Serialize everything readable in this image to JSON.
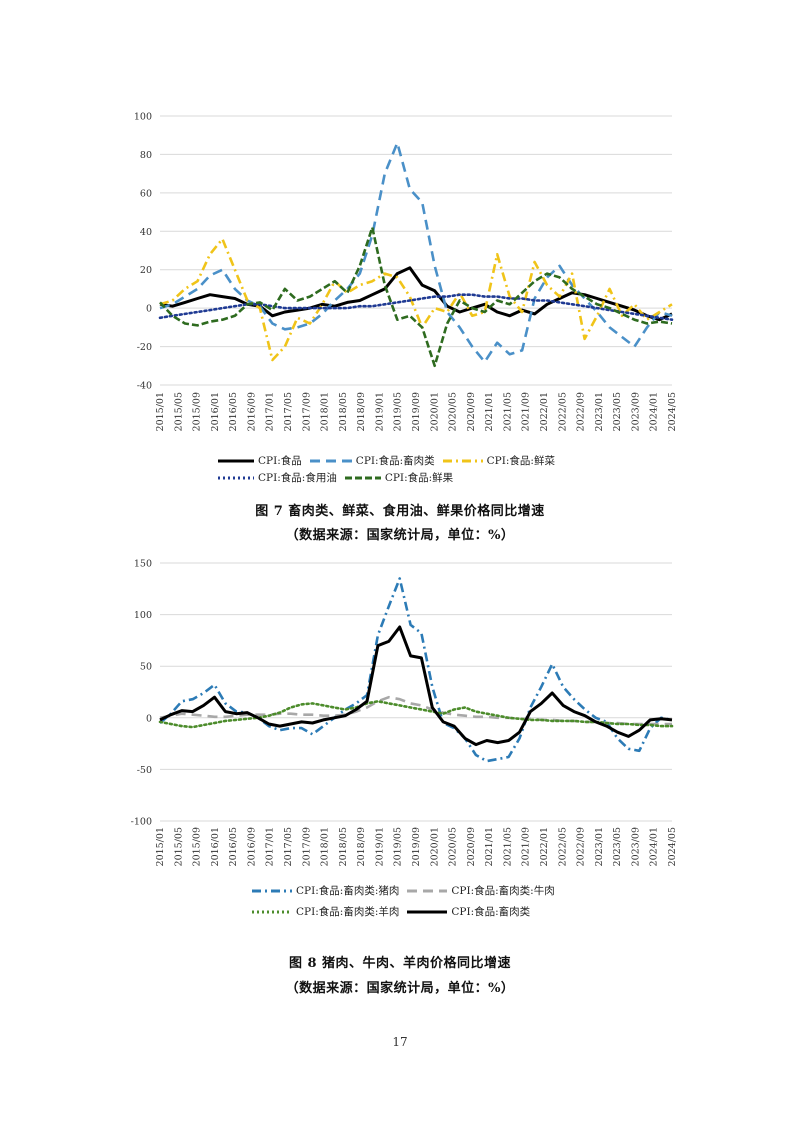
{
  "figure7": {
    "caption": "图 7 畜肉类、鲜菜、食用油、鲜果价格同比增速",
    "source": "（数据来源：国家统计局，单位：%）"
  },
  "figure8": {
    "caption": "图 8 猪肉、牛肉、羊肉价格同比增速",
    "source": "（数据来源：国家统计局，单位：%）"
  },
  "page_number": "17",
  "chart_data": [
    {
      "type": "line",
      "title": "",
      "xlabel": "",
      "ylabel": "",
      "ylim": [
        -40,
        100
      ],
      "yticks": [
        -40,
        -20,
        0,
        20,
        40,
        60,
        80,
        100
      ],
      "x_tick_labels": [
        "2015/01",
        "2015/05",
        "2015/09",
        "2016/01",
        "2016/05",
        "2016/09",
        "2017/01",
        "2017/05",
        "2017/09",
        "2018/01",
        "2018/05",
        "2018/09",
        "2019/01",
        "2019/05",
        "2019/09",
        "2020/01",
        "2020/05",
        "2020/09",
        "2021/01",
        "2021/05",
        "2021/09",
        "2022/01",
        "2022/05",
        "2022/09",
        "2023/01",
        "2023/05",
        "2023/09",
        "2024/01",
        "2024/05"
      ],
      "grid": true,
      "legend_position": "bottom",
      "series": [
        {
          "name": "CPI:食品",
          "color": "#000000",
          "style": "solid",
          "values": [
            2,
            1,
            3,
            5,
            7,
            6,
            5,
            2,
            1,
            -4,
            -2,
            -1,
            0,
            2,
            1,
            3,
            4,
            7,
            10,
            18,
            21,
            12,
            9,
            1,
            -2,
            0,
            2,
            -2,
            -4,
            -1,
            -3,
            2,
            5,
            8,
            7,
            5,
            3,
            1,
            -1,
            -4,
            -6,
            -3
          ]
        },
        {
          "name": "CPI:食品:畜肉类",
          "color": "#4A90C8",
          "style": "dash",
          "values": [
            0,
            2,
            6,
            10,
            17,
            20,
            10,
            4,
            1,
            -8,
            -11,
            -10,
            -8,
            -3,
            4,
            10,
            18,
            38,
            70,
            86,
            62,
            55,
            22,
            -2,
            -10,
            -20,
            -28,
            -18,
            -24,
            -22,
            5,
            16,
            22,
            12,
            5,
            -2,
            -10,
            -15,
            -20,
            -10,
            -2,
            -4
          ]
        },
        {
          "name": "CPI:食品:鲜菜",
          "color": "#F0C419",
          "style": "dashdot",
          "values": [
            2,
            4,
            10,
            14,
            28,
            36,
            20,
            4,
            0,
            -27,
            -20,
            -5,
            -8,
            2,
            14,
            8,
            12,
            14,
            18,
            16,
            6,
            -10,
            0,
            -2,
            8,
            -4,
            -2,
            28,
            6,
            -2,
            24,
            12,
            6,
            18,
            -16,
            -4,
            10,
            -4,
            2,
            -6,
            -2,
            2
          ]
        },
        {
          "name": "CPI:食品:食用油",
          "color": "#1F3A93",
          "style": "dot",
          "values": [
            -5,
            -4,
            -3,
            -2,
            -1,
            0,
            1,
            2,
            2,
            1,
            0,
            0,
            0,
            0,
            0,
            0,
            1,
            1,
            2,
            3,
            4,
            5,
            6,
            6,
            7,
            7,
            6,
            6,
            5,
            5,
            4,
            4,
            3,
            2,
            1,
            0,
            -1,
            -2,
            -3,
            -4,
            -5,
            -6
          ]
        },
        {
          "name": "CPI:食品:鲜果",
          "color": "#2E6B1F",
          "style": "longdash",
          "values": [
            3,
            -4,
            -8,
            -9,
            -7,
            -6,
            -4,
            2,
            3,
            -1,
            10,
            4,
            6,
            10,
            14,
            8,
            22,
            42,
            12,
            -6,
            -4,
            -10,
            -30,
            -8,
            4,
            0,
            -2,
            4,
            2,
            8,
            14,
            18,
            16,
            10,
            6,
            2,
            0,
            -3,
            -6,
            -8,
            -7,
            -8
          ]
        }
      ]
    },
    {
      "type": "line",
      "title": "",
      "xlabel": "",
      "ylabel": "",
      "ylim": [
        -100,
        150
      ],
      "yticks": [
        -100,
        -50,
        0,
        50,
        100,
        150
      ],
      "x_tick_labels": [
        "2015/01",
        "2015/05",
        "2015/09",
        "2016/01",
        "2016/05",
        "2016/09",
        "2017/01",
        "2017/05",
        "2017/09",
        "2018/01",
        "2018/05",
        "2018/09",
        "2019/01",
        "2019/05",
        "2019/09",
        "2020/01",
        "2020/05",
        "2020/09",
        "2021/01",
        "2021/05",
        "2021/09",
        "2022/01",
        "2022/05",
        "2022/09",
        "2023/01",
        "2023/05",
        "2023/09",
        "2024/01",
        "2024/05"
      ],
      "grid": true,
      "legend_position": "bottom",
      "series": [
        {
          "name": "CPI:食品:畜肉类:猪肉",
          "color": "#2C7BB6",
          "style": "dashdot",
          "values": [
            -5,
            4,
            16,
            18,
            24,
            32,
            14,
            6,
            5,
            0,
            -8,
            -12,
            -10,
            -10,
            -16,
            -8,
            0,
            8,
            14,
            22,
            80,
            108,
            135,
            90,
            82,
            30,
            -5,
            -10,
            -20,
            -36,
            -42,
            -40,
            -38,
            -20,
            10,
            30,
            52,
            30,
            18,
            8,
            0,
            -4,
            -20,
            -30,
            -32,
            -10,
            0,
            -2
          ]
        },
        {
          "name": "CPI:食品:畜肉类:牛肉",
          "color": "#A8A8A8",
          "style": "dash",
          "values": [
            0,
            2,
            4,
            3,
            2,
            1,
            1,
            2,
            3,
            3,
            3,
            4,
            4,
            3,
            3,
            2,
            2,
            3,
            6,
            10,
            16,
            20,
            18,
            14,
            12,
            8,
            5,
            3,
            2,
            1,
            1,
            0,
            0,
            -1,
            -1,
            -2,
            -2,
            -3,
            -3,
            -4,
            -4,
            -5,
            -5,
            -6,
            -6,
            -6,
            -6,
            -6
          ]
        },
        {
          "name": "CPI:食品:畜肉类:羊肉",
          "color": "#4C8C2B",
          "style": "dot",
          "values": [
            -4,
            -6,
            -8,
            -9,
            -7,
            -5,
            -3,
            -2,
            -1,
            0,
            2,
            5,
            10,
            13,
            14,
            12,
            10,
            8,
            10,
            14,
            16,
            14,
            12,
            10,
            8,
            6,
            4,
            8,
            10,
            6,
            4,
            2,
            0,
            -1,
            -2,
            -2,
            -3,
            -3,
            -3,
            -4,
            -4,
            -5,
            -6,
            -6,
            -7,
            -7,
            -8,
            -8
          ]
        },
        {
          "name": "CPI:食品:畜肉类",
          "color": "#000000",
          "style": "solid",
          "values": [
            -2,
            3,
            7,
            6,
            12,
            20,
            6,
            4,
            5,
            0,
            -6,
            -8,
            -6,
            -4,
            -5,
            -2,
            0,
            2,
            8,
            16,
            70,
            74,
            88,
            60,
            58,
            10,
            -4,
            -8,
            -20,
            -26,
            -22,
            -24,
            -22,
            -14,
            6,
            14,
            24,
            12,
            6,
            2,
            -4,
            -8,
            -14,
            -18,
            -12,
            -2,
            -1,
            -2
          ]
        }
      ]
    }
  ]
}
